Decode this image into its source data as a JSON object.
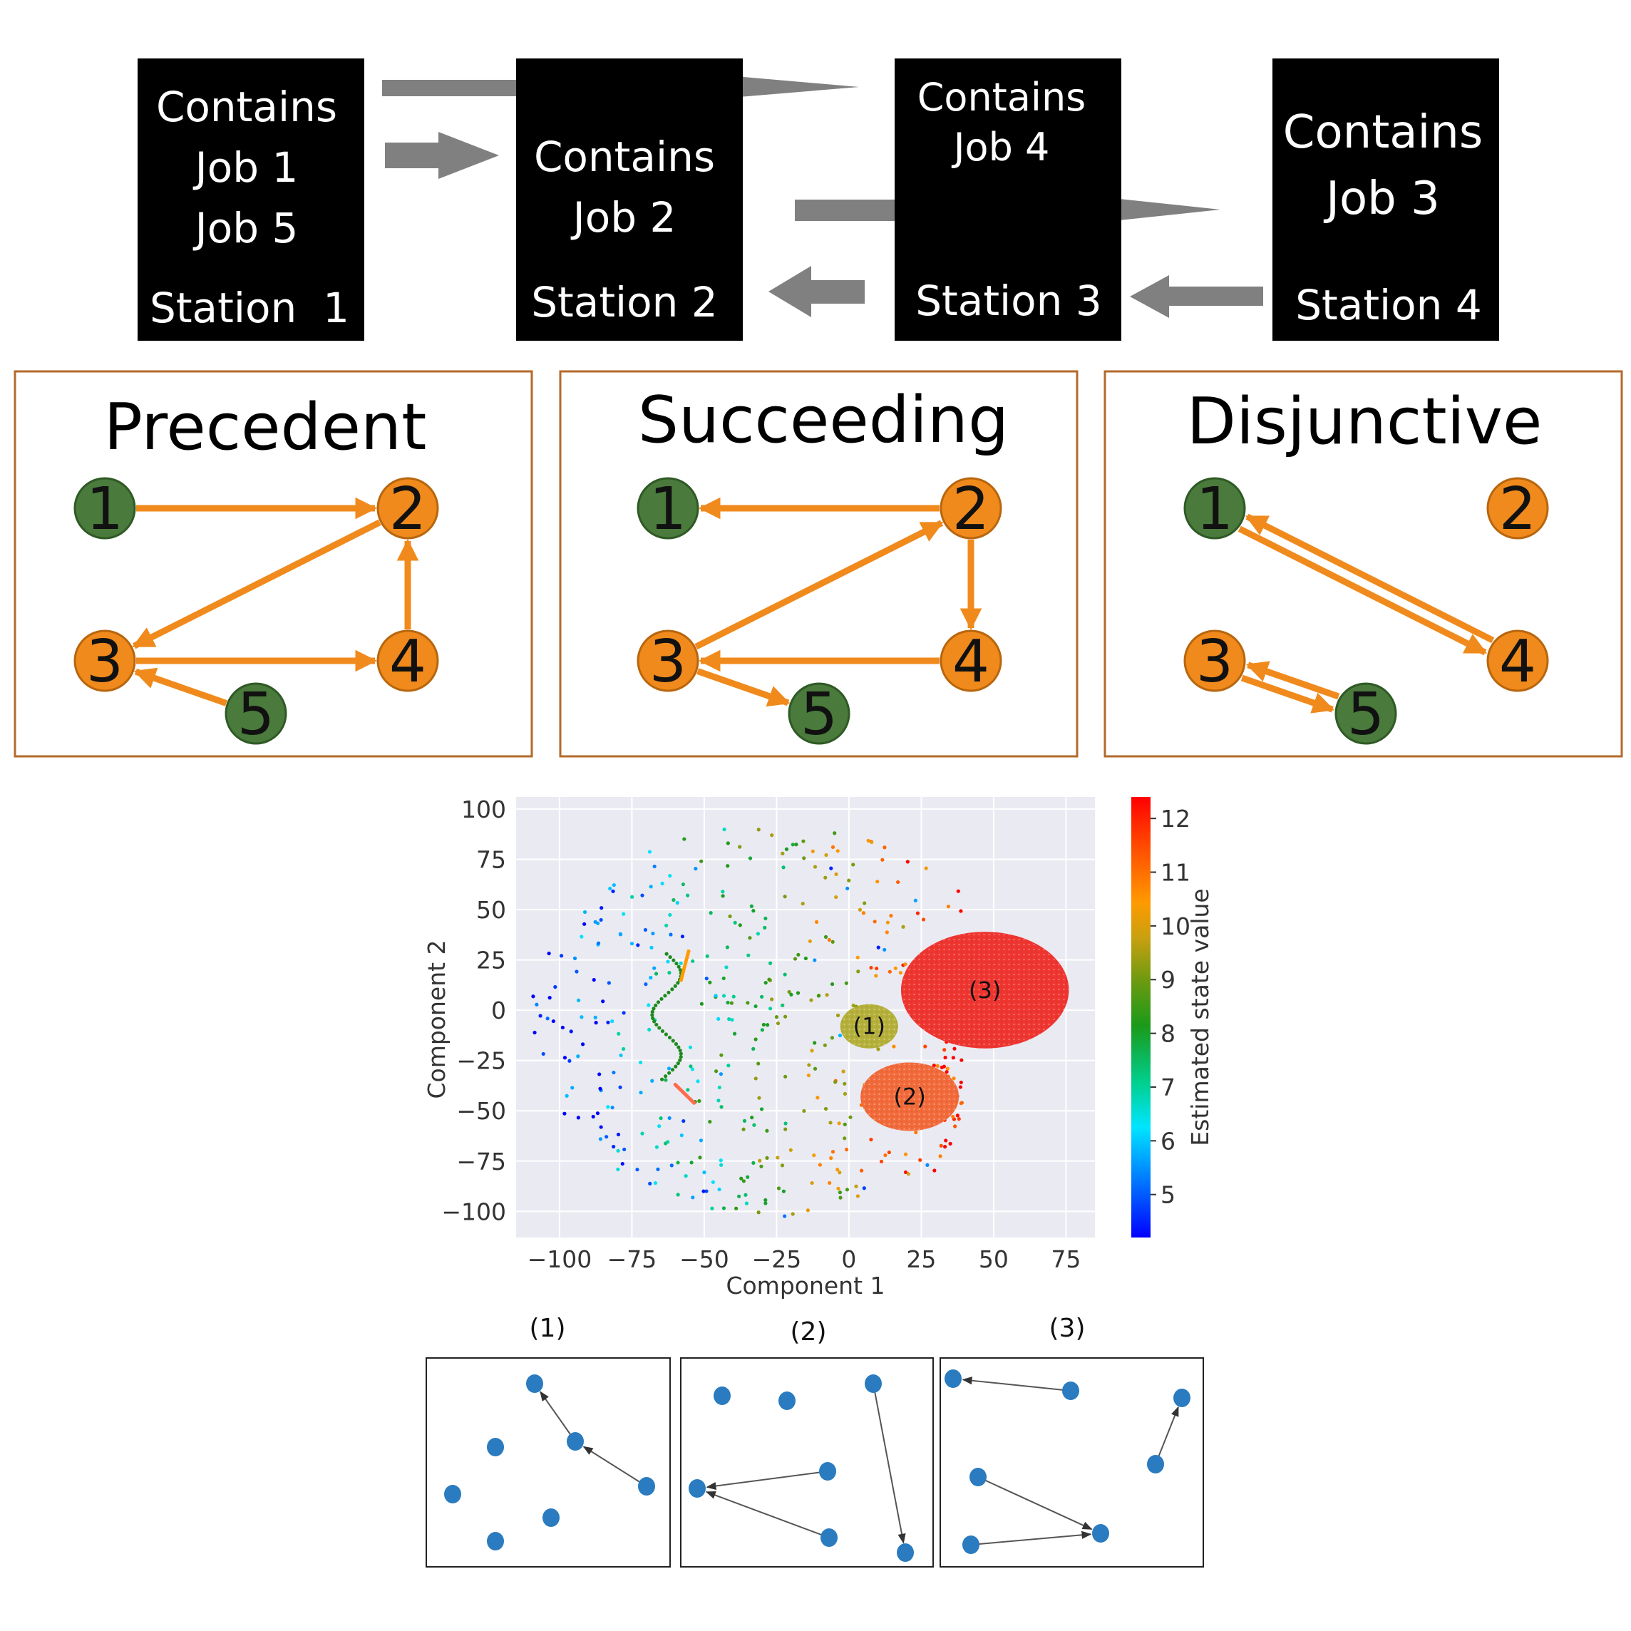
{
  "stations": [
    {
      "lines": [
        "Contains",
        "Job 1",
        "Job 5"
      ],
      "name": "Station  1"
    },
    {
      "lines": [
        "Contains",
        "Job 2"
      ],
      "name": "Station 2"
    },
    {
      "lines": [
        "Contains",
        "Job 4"
      ],
      "name": "Station 3"
    },
    {
      "lines": [
        "Contains",
        "Job 3"
      ],
      "name": "Station 4"
    }
  ],
  "graphs": [
    {
      "title": "Precedent",
      "nodes": [
        {
          "label": "1",
          "color": "green"
        },
        {
          "label": "2",
          "color": "orange"
        },
        {
          "label": "3",
          "color": "orange"
        },
        {
          "label": "4",
          "color": "orange"
        },
        {
          "label": "5",
          "color": "green"
        }
      ],
      "edges": [
        [
          "1",
          "2"
        ],
        [
          "2",
          "3"
        ],
        [
          "3",
          "4"
        ],
        [
          "4",
          "2"
        ],
        [
          "5",
          "3"
        ]
      ]
    },
    {
      "title": "Succeeding",
      "nodes": [
        {
          "label": "1",
          "color": "green"
        },
        {
          "label": "2",
          "color": "orange"
        },
        {
          "label": "3",
          "color": "orange"
        },
        {
          "label": "4",
          "color": "orange"
        },
        {
          "label": "5",
          "color": "green"
        }
      ],
      "edges": [
        [
          "2",
          "1"
        ],
        [
          "3",
          "2"
        ],
        [
          "2",
          "4"
        ],
        [
          "4",
          "3"
        ],
        [
          "3",
          "5"
        ]
      ]
    },
    {
      "title": "Disjunctive",
      "nodes": [
        {
          "label": "1",
          "color": "green"
        },
        {
          "label": "2",
          "color": "orange"
        },
        {
          "label": "3",
          "color": "orange"
        },
        {
          "label": "4",
          "color": "orange"
        },
        {
          "label": "5",
          "color": "green"
        }
      ],
      "edges": [
        [
          "1",
          "4"
        ],
        [
          "4",
          "1"
        ],
        [
          "3",
          "5"
        ],
        [
          "5",
          "3"
        ]
      ]
    }
  ],
  "colors": {
    "node_green": "#4a7a3c",
    "node_orange": "#f08a1c",
    "edge_orange": "#f08a1c",
    "panel_border": "#b36a2a",
    "station_bg": "#000000",
    "flow_arrow": "#808080"
  },
  "chart_data": {
    "type": "scatter",
    "xlabel": "Component 1",
    "ylabel": "Component 2",
    "xlim": [
      -115,
      85
    ],
    "ylim": [
      -113,
      106
    ],
    "xticks": [
      -100,
      -75,
      -50,
      -25,
      0,
      25,
      50,
      75
    ],
    "yticks": [
      100,
      75,
      50,
      25,
      0,
      -25,
      -50,
      -75,
      -100
    ],
    "xtick_labels": [
      "−100",
      "−75",
      "−50",
      "−25",
      "0",
      "25",
      "50",
      "75"
    ],
    "ytick_labels": [
      "100",
      "75",
      "50",
      "25",
      "0",
      "−25",
      "−50",
      "−75",
      "−100"
    ],
    "grid": true,
    "colorbar": {
      "label": "Estimated state value",
      "min": 4.2,
      "max": 12.4,
      "ticks": [
        "5",
        "6",
        "7",
        "8",
        "9",
        "10",
        "11",
        "12"
      ]
    },
    "regions": [
      {
        "label": "(1)",
        "cx": 7,
        "cy": -8,
        "rx": 10,
        "ry": 11,
        "color": "#b5b03a"
      },
      {
        "label": "(2)",
        "cx": 21,
        "cy": -43,
        "rx": 17,
        "ry": 17,
        "color": "#f26a3a"
      },
      {
        "label": "(3)",
        "cx": 47,
        "cy": 10,
        "rx": 29,
        "ry": 29,
        "color": "#ee3530"
      }
    ]
  },
  "mini_graphs": [
    {
      "title": "(1)"
    },
    {
      "title": "(2)"
    },
    {
      "title": "(3)"
    }
  ]
}
